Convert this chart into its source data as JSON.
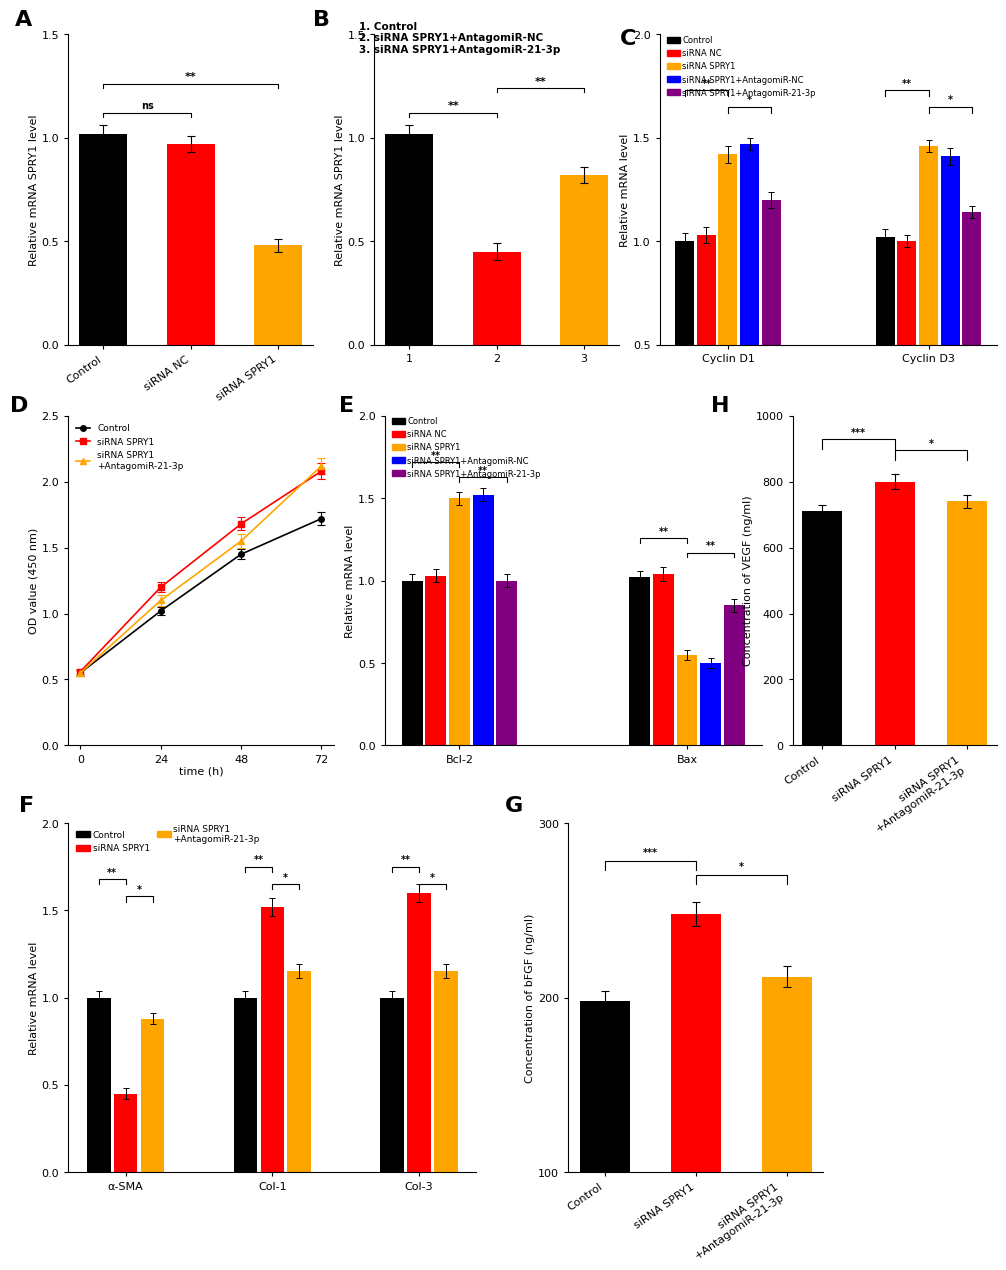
{
  "panel_A": {
    "categories": [
      "Control",
      "siRNA NC",
      "siRNA SPRY1"
    ],
    "values": [
      1.02,
      0.97,
      0.48
    ],
    "errors": [
      0.04,
      0.04,
      0.03
    ],
    "colors": [
      "#000000",
      "#FF0000",
      "#FFA500"
    ],
    "ylabel": "Relative mRNA SPRY1 level",
    "ylim": [
      0,
      1.5
    ],
    "yticks": [
      0.0,
      0.5,
      1.0,
      1.5
    ]
  },
  "panel_B": {
    "categories": [
      "1",
      "2",
      "3"
    ],
    "values": [
      1.02,
      0.45,
      0.82
    ],
    "errors": [
      0.04,
      0.04,
      0.04
    ],
    "colors": [
      "#000000",
      "#FF0000",
      "#FFA500"
    ],
    "ylabel": "Relative mRNA SPRY1 level",
    "ylim": [
      0,
      1.5
    ],
    "yticks": [
      0.0,
      0.5,
      1.0,
      1.5
    ],
    "legend_text": [
      "1. Control",
      "2. siRNA SPRY1+AntagomiR-NC",
      "3. siRNA SPRY1+AntagomiR-21-3p"
    ]
  },
  "panel_C": {
    "groups": [
      "Cyclin D1",
      "Cyclin D3"
    ],
    "categories": [
      "Control",
      "siRNA NC",
      "siRNA SPRY1",
      "siRNA SPRY1+AntagomiR-NC",
      "siRNA SPRY1+AntagomiR-21-3p"
    ],
    "colors": [
      "#000000",
      "#FF0000",
      "#FFA500",
      "#0000FF",
      "#800080"
    ],
    "values_D1": [
      1.0,
      1.03,
      1.42,
      1.47,
      1.2
    ],
    "errors_D1": [
      0.04,
      0.04,
      0.04,
      0.03,
      0.04
    ],
    "values_D3": [
      1.02,
      1.0,
      1.46,
      1.41,
      1.14
    ],
    "errors_D3": [
      0.04,
      0.03,
      0.03,
      0.04,
      0.03
    ],
    "ylabel": "Relative mRNA level",
    "ylim": [
      0.5,
      2.0
    ],
    "yticks": [
      0.5,
      1.0,
      1.5,
      2.0
    ]
  },
  "panel_D": {
    "timepoints": [
      0,
      24,
      48,
      72
    ],
    "series_order": [
      "Control",
      "siRNA SPRY1",
      "siRNA SPRY1\n+AntagomiR-21-3p"
    ],
    "series": {
      "Control": [
        0.55,
        1.02,
        1.45,
        1.72
      ],
      "siRNA SPRY1": [
        0.56,
        1.2,
        1.68,
        2.08
      ],
      "siRNA SPRY1\n+AntagomiR-21-3p": [
        0.55,
        1.1,
        1.55,
        2.12
      ]
    },
    "errors": {
      "Control": [
        0.02,
        0.03,
        0.04,
        0.05
      ],
      "siRNA SPRY1": [
        0.02,
        0.04,
        0.05,
        0.06
      ],
      "siRNA SPRY1\n+AntagomiR-21-3p": [
        0.02,
        0.04,
        0.05,
        0.06
      ]
    },
    "colors": {
      "Control": "#000000",
      "siRNA SPRY1": "#FF0000",
      "siRNA SPRY1\n+AntagomiR-21-3p": "#FFA500"
    },
    "markers": {
      "Control": "o",
      "siRNA SPRY1": "s",
      "siRNA SPRY1\n+AntagomiR-21-3p": "^"
    },
    "legend_labels": [
      "Control",
      "siRNA SPRY1",
      "siRNA SPRY1\n+AntagomiR-21-3p"
    ],
    "xlabel": "time (h)",
    "ylabel": "OD value (450 nm)",
    "ylim": [
      0.0,
      2.5
    ],
    "yticks": [
      0.0,
      0.5,
      1.0,
      1.5,
      2.0,
      2.5
    ]
  },
  "panel_E": {
    "groups": [
      "Bcl-2",
      "Bax"
    ],
    "categories": [
      "Control",
      "siRNA NC",
      "siRNA SPRY1",
      "siRNA SPRY1+AntagomiR-NC",
      "siRNA SPRY1+AntagomiR-21-3p"
    ],
    "colors": [
      "#000000",
      "#FF0000",
      "#FFA500",
      "#0000FF",
      "#800080"
    ],
    "values_Bcl2": [
      1.0,
      1.03,
      1.5,
      1.52,
      1.0
    ],
    "errors_Bcl2": [
      0.04,
      0.04,
      0.04,
      0.04,
      0.04
    ],
    "values_Bax": [
      1.02,
      1.04,
      0.55,
      0.5,
      0.85
    ],
    "errors_Bax": [
      0.04,
      0.04,
      0.03,
      0.03,
      0.04
    ],
    "ylabel": "Relative mRNA level",
    "ylim": [
      0.0,
      2.0
    ],
    "yticks": [
      0.0,
      0.5,
      1.0,
      1.5,
      2.0
    ]
  },
  "panel_F": {
    "groups": [
      "α-SMA",
      "Col-1",
      "Col-3"
    ],
    "categories": [
      "Control",
      "siRNA SPRY1",
      "siRNA SPRY1+AntagomiR-21-3p"
    ],
    "colors": [
      "#000000",
      "#FF0000",
      "#FFA500"
    ],
    "values_aSMA": [
      1.0,
      0.45,
      0.88
    ],
    "errors_aSMA": [
      0.04,
      0.03,
      0.03
    ],
    "values_Col1": [
      1.0,
      1.52,
      1.15
    ],
    "errors_Col1": [
      0.04,
      0.05,
      0.04
    ],
    "values_Col3": [
      1.0,
      1.6,
      1.15
    ],
    "errors_Col3": [
      0.04,
      0.05,
      0.04
    ],
    "ylabel": "Relative mRNA level",
    "ylim": [
      0.0,
      2.0
    ],
    "yticks": [
      0.0,
      0.5,
      1.0,
      1.5,
      2.0
    ]
  },
  "panel_G": {
    "categories": [
      "Control",
      "siRNA SPRY1",
      "siRNA SPRY1\n+AntagomiR-21-3p"
    ],
    "values": [
      198,
      248,
      212
    ],
    "errors": [
      6,
      7,
      6
    ],
    "colors": [
      "#000000",
      "#FF0000",
      "#FFA500"
    ],
    "ylabel": "Concentration of bFGF (ng/ml)",
    "ylim": [
      100,
      300
    ],
    "yticks": [
      100,
      200,
      300
    ]
  },
  "panel_H": {
    "categories": [
      "Control",
      "siRNA SPRY1",
      "siRNA SPRY1\n+AntagomiR-21-3p"
    ],
    "values": [
      710,
      800,
      740
    ],
    "errors": [
      20,
      22,
      20
    ],
    "colors": [
      "#000000",
      "#FF0000",
      "#FFA500"
    ],
    "ylabel": "Concentration of VEGF (ng/ml)",
    "ylim": [
      0,
      1000
    ],
    "yticks": [
      0,
      200,
      400,
      600,
      800,
      1000
    ]
  },
  "label_fontsize": 16,
  "axis_label_fontsize": 8,
  "tick_fontsize": 8,
  "capsize": 3,
  "bar_width": 0.55
}
